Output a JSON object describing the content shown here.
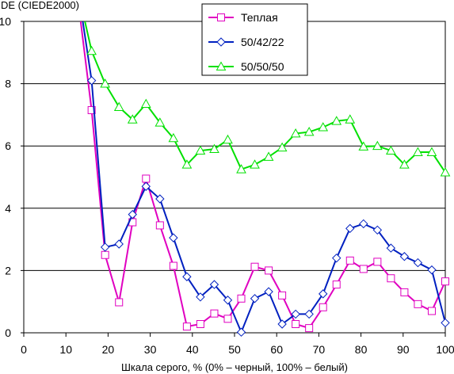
{
  "chart_data": {
    "type": "line",
    "title": "",
    "ylabel": "DE (CIEDE2000)",
    "xlabel": "Шкала серого, % (0% – черный, 100% – белый)",
    "xlim": [
      0,
      100
    ],
    "ylim": [
      0,
      10
    ],
    "xticks": [
      0,
      10,
      20,
      30,
      40,
      50,
      60,
      70,
      80,
      90,
      100
    ],
    "yticks": [
      0,
      2,
      4,
      6,
      8,
      10
    ],
    "grid": "horizontal",
    "legend_position": "top-center",
    "series": [
      {
        "name": "Теплая",
        "color": "#e000c0",
        "marker": "square",
        "x": [
          13.5,
          16.1,
          19.3,
          22.6,
          25.8,
          29.0,
          32.3,
          35.5,
          38.7,
          41.9,
          45.2,
          48.4,
          51.6,
          54.8,
          58.1,
          61.3,
          64.5,
          67.7,
          71.0,
          74.2,
          77.4,
          80.6,
          83.9,
          87.1,
          90.3,
          93.5,
          96.8,
          100
        ],
        "y": [
          10.0,
          7.15,
          2.5,
          0.98,
          3.55,
          4.95,
          3.45,
          2.15,
          0.2,
          0.28,
          0.62,
          0.45,
          1.1,
          2.12,
          2.0,
          1.2,
          0.28,
          0.15,
          0.82,
          1.55,
          2.32,
          2.05,
          2.28,
          1.75,
          1.3,
          0.92,
          0.7,
          1.65
        ]
      },
      {
        "name": "50/42/22",
        "color": "#0020c0",
        "marker": "diamond",
        "x": [
          14.0,
          16.1,
          19.3,
          22.6,
          25.8,
          29.0,
          32.3,
          35.5,
          38.7,
          41.9,
          45.2,
          48.4,
          51.6,
          54.8,
          58.1,
          61.3,
          64.5,
          67.7,
          71.0,
          74.2,
          77.4,
          80.6,
          83.9,
          87.1,
          90.3,
          93.5,
          96.8,
          100
        ],
        "y": [
          10.0,
          8.1,
          2.75,
          2.85,
          3.8,
          4.7,
          4.3,
          3.05,
          1.8,
          1.15,
          1.55,
          1.05,
          0.02,
          1.1,
          1.32,
          0.28,
          0.6,
          0.6,
          1.25,
          2.4,
          3.35,
          3.5,
          3.3,
          2.72,
          2.45,
          2.25,
          2.02,
          0.32
        ]
      },
      {
        "name": "50/50/50",
        "color": "#00e000",
        "marker": "triangle",
        "x": [
          14.5,
          16.1,
          19.3,
          22.6,
          25.8,
          29.0,
          32.3,
          35.5,
          38.7,
          41.9,
          45.2,
          48.4,
          51.6,
          54.8,
          58.1,
          61.3,
          64.5,
          67.7,
          71.0,
          74.2,
          77.4,
          80.6,
          83.9,
          87.1,
          90.3,
          93.5,
          96.8,
          100
        ],
        "y": [
          10.0,
          9.05,
          8.0,
          7.25,
          6.85,
          7.35,
          6.75,
          6.25,
          5.4,
          5.85,
          5.9,
          6.2,
          5.25,
          5.4,
          5.65,
          5.95,
          6.4,
          6.45,
          6.6,
          6.8,
          6.85,
          5.98,
          6.0,
          5.85,
          5.4,
          5.8,
          5.8,
          5.15
        ]
      }
    ]
  }
}
